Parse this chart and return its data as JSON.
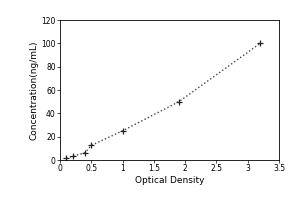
{
  "x_data": [
    0.1,
    0.2,
    0.4,
    0.5,
    1.0,
    1.9,
    3.2
  ],
  "y_data": [
    1.56,
    3.13,
    6.25,
    12.5,
    25.0,
    50.0,
    100.0
  ],
  "xlabel": "Optical Density",
  "ylabel": "Concentration(ng/mL)",
  "xlim": [
    0,
    3.5
  ],
  "ylim": [
    0,
    120
  ],
  "xticks": [
    0,
    0.5,
    1.0,
    1.5,
    2.0,
    2.5,
    3.0,
    3.5
  ],
  "yticks": [
    0,
    20,
    40,
    60,
    80,
    100,
    120
  ],
  "line_color": "#444444",
  "marker_color": "#222222",
  "background_color": "#ffffff",
  "outer_background": "#ffffff",
  "axis_fontsize": 6.5,
  "tick_fontsize": 5.5
}
